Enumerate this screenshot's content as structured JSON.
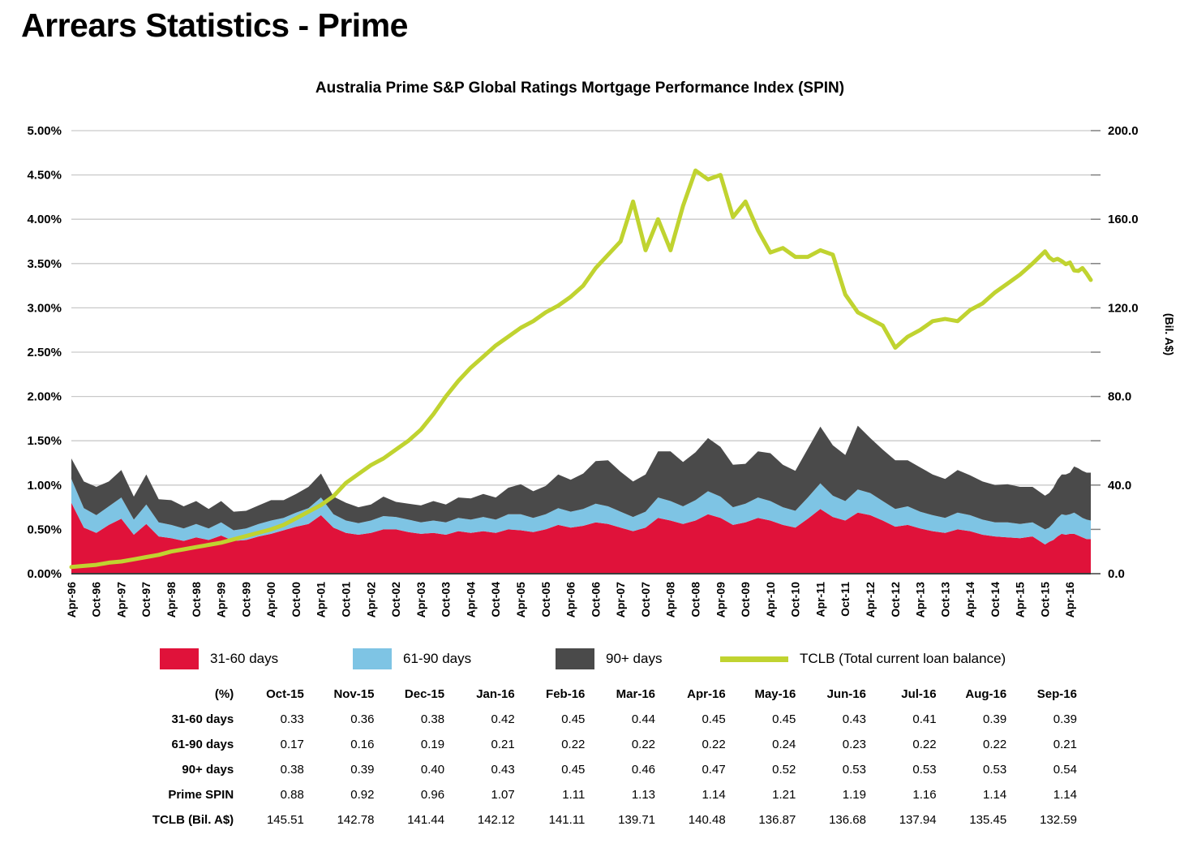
{
  "page": {
    "title": "Arrears Statistics - Prime"
  },
  "chart_data": {
    "type": "area",
    "subtype": "stacked-area-with-line-overlay",
    "title": "Australia Prime S&P Global Ratings Mortgage Performance Index (SPIN)",
    "grid": true,
    "x_tick_labels": [
      "Apr-96",
      "Oct-96",
      "Apr-97",
      "Oct-97",
      "Apr-98",
      "Oct-98",
      "Apr-99",
      "Oct-99",
      "Apr-00",
      "Oct-00",
      "Apr-01",
      "Oct-01",
      "Apr-02",
      "Oct-02",
      "Apr-03",
      "Oct-03",
      "Apr-04",
      "Oct-04",
      "Apr-05",
      "Oct-05",
      "Apr-06",
      "Oct-06",
      "Apr-07",
      "Oct-07",
      "Apr-08",
      "Oct-08",
      "Apr-09",
      "Oct-09",
      "Apr-10",
      "Oct-10",
      "Apr-11",
      "Oct-11",
      "Apr-12",
      "Oct-12",
      "Apr-13",
      "Oct-13",
      "Apr-14",
      "Oct-14",
      "Apr-15",
      "Oct-15",
      "Apr-16"
    ],
    "x_tick_month_step": 6,
    "x_total_months": 245,
    "y_left": {
      "min": 0,
      "max": 5,
      "tick_labels": [
        "0.00%",
        "0.50%",
        "1.00%",
        "1.50%",
        "2.00%",
        "2.50%",
        "3.00%",
        "3.50%",
        "4.00%",
        "4.50%",
        "5.00%"
      ],
      "format": "percent"
    },
    "y_right": {
      "label": "(Bil. A$)",
      "min": 0,
      "max": 200,
      "tick_step": 20,
      "label_step": 40,
      "tick_labels": [
        "0.0",
        "40.0",
        "80.0",
        "120.0",
        "160.0",
        "200.0"
      ]
    },
    "months_from_apr96": [
      0,
      3,
      6,
      9,
      12,
      15,
      18,
      21,
      24,
      27,
      30,
      33,
      36,
      39,
      42,
      45,
      48,
      51,
      54,
      57,
      60,
      63,
      66,
      69,
      72,
      75,
      78,
      81,
      84,
      87,
      90,
      93,
      96,
      99,
      102,
      105,
      108,
      111,
      114,
      117,
      120,
      123,
      126,
      129,
      132,
      135,
      138,
      141,
      144,
      147,
      150,
      153,
      156,
      159,
      162,
      165,
      168,
      171,
      174,
      177,
      180,
      183,
      186,
      189,
      192,
      195,
      198,
      201,
      204,
      207,
      210,
      213,
      216,
      219,
      222,
      225,
      228,
      231,
      234,
      235,
      236,
      237,
      238,
      239,
      240,
      241,
      242,
      243,
      244,
      245
    ],
    "series": [
      {
        "name": "31-60 days",
        "type": "area-stacked",
        "axis": "left",
        "color": "#e0123a",
        "values": [
          0.8,
          0.52,
          0.46,
          0.55,
          0.62,
          0.44,
          0.56,
          0.42,
          0.4,
          0.37,
          0.41,
          0.38,
          0.43,
          0.37,
          0.38,
          0.42,
          0.45,
          0.49,
          0.53,
          0.56,
          0.66,
          0.52,
          0.46,
          0.44,
          0.46,
          0.5,
          0.5,
          0.47,
          0.45,
          0.46,
          0.44,
          0.48,
          0.46,
          0.48,
          0.46,
          0.5,
          0.49,
          0.47,
          0.5,
          0.55,
          0.52,
          0.54,
          0.58,
          0.56,
          0.52,
          0.48,
          0.52,
          0.63,
          0.6,
          0.56,
          0.6,
          0.67,
          0.63,
          0.55,
          0.58,
          0.63,
          0.6,
          0.55,
          0.52,
          0.62,
          0.73,
          0.64,
          0.6,
          0.69,
          0.66,
          0.6,
          0.53,
          0.55,
          0.51,
          0.48,
          0.46,
          0.5,
          0.48,
          0.44,
          0.42,
          0.41,
          0.4,
          0.42,
          0.33,
          0.36,
          0.38,
          0.42,
          0.45,
          0.44,
          0.45,
          0.45,
          0.43,
          0.41,
          0.39,
          0.39
        ]
      },
      {
        "name": "61-90 days",
        "type": "area-stacked",
        "axis": "left",
        "color": "#7ec4e4",
        "values": [
          0.27,
          0.22,
          0.2,
          0.21,
          0.24,
          0.17,
          0.22,
          0.16,
          0.15,
          0.14,
          0.15,
          0.13,
          0.15,
          0.12,
          0.13,
          0.14,
          0.15,
          0.14,
          0.16,
          0.18,
          0.2,
          0.15,
          0.14,
          0.13,
          0.14,
          0.15,
          0.14,
          0.14,
          0.13,
          0.14,
          0.14,
          0.15,
          0.15,
          0.16,
          0.15,
          0.17,
          0.18,
          0.16,
          0.17,
          0.19,
          0.18,
          0.19,
          0.21,
          0.2,
          0.18,
          0.16,
          0.18,
          0.23,
          0.22,
          0.2,
          0.23,
          0.26,
          0.24,
          0.2,
          0.21,
          0.23,
          0.22,
          0.2,
          0.19,
          0.24,
          0.29,
          0.24,
          0.22,
          0.26,
          0.25,
          0.22,
          0.2,
          0.21,
          0.19,
          0.18,
          0.17,
          0.19,
          0.18,
          0.17,
          0.16,
          0.17,
          0.16,
          0.16,
          0.17,
          0.16,
          0.19,
          0.21,
          0.22,
          0.22,
          0.22,
          0.24,
          0.23,
          0.22,
          0.22,
          0.21
        ]
      },
      {
        "name": "90+ days",
        "type": "area-stacked",
        "axis": "left",
        "color": "#4a4a4a",
        "values": [
          0.23,
          0.3,
          0.32,
          0.28,
          0.31,
          0.26,
          0.34,
          0.26,
          0.28,
          0.25,
          0.26,
          0.22,
          0.24,
          0.21,
          0.2,
          0.21,
          0.23,
          0.2,
          0.21,
          0.24,
          0.27,
          0.2,
          0.2,
          0.18,
          0.18,
          0.22,
          0.17,
          0.18,
          0.19,
          0.22,
          0.2,
          0.23,
          0.24,
          0.26,
          0.25,
          0.3,
          0.34,
          0.3,
          0.32,
          0.38,
          0.36,
          0.4,
          0.48,
          0.52,
          0.45,
          0.4,
          0.42,
          0.52,
          0.56,
          0.5,
          0.54,
          0.6,
          0.56,
          0.48,
          0.45,
          0.52,
          0.54,
          0.48,
          0.45,
          0.55,
          0.64,
          0.57,
          0.52,
          0.72,
          0.62,
          0.58,
          0.55,
          0.52,
          0.5,
          0.46,
          0.44,
          0.48,
          0.45,
          0.43,
          0.42,
          0.43,
          0.42,
          0.4,
          0.38,
          0.39,
          0.4,
          0.43,
          0.45,
          0.46,
          0.47,
          0.52,
          0.53,
          0.53,
          0.53,
          0.54
        ]
      },
      {
        "name": "TCLB (Total current loan balance)",
        "type": "line",
        "axis": "right",
        "color": "#c0d330",
        "values": [
          3,
          3.5,
          4,
          5,
          5.5,
          6.5,
          7.5,
          8.5,
          10,
          11,
          12,
          13,
          14,
          15.5,
          17,
          18.5,
          20,
          22,
          25,
          28,
          31,
          35,
          41,
          45,
          49,
          52,
          56,
          60,
          65,
          72,
          80,
          87,
          93,
          98,
          103,
          107,
          111,
          114,
          118,
          121,
          125,
          130,
          138,
          144,
          150,
          168,
          146,
          160,
          146,
          166,
          182,
          178,
          180,
          161,
          168,
          155,
          145,
          147,
          143,
          143,
          146,
          144,
          126,
          118,
          115,
          112,
          102,
          107,
          110,
          114,
          115,
          114,
          119,
          122,
          127,
          131,
          135,
          140,
          145.51,
          142.78,
          141.44,
          142.12,
          141.11,
          139.71,
          140.48,
          136.87,
          136.68,
          137.94,
          135.45,
          132.59
        ]
      }
    ]
  },
  "legend": {
    "items": [
      {
        "label": "31-60 days",
        "shape": "rect",
        "color": "#e0123a",
        "x": 197
      },
      {
        "label": "61-90 days",
        "shape": "rect",
        "color": "#7ec4e4",
        "x": 435
      },
      {
        "label": "90+ days",
        "shape": "rect",
        "color": "#4a4a4a",
        "x": 685
      },
      {
        "label": "TCLB (Total current loan balance)",
        "shape": "line",
        "color": "#c0d330",
        "x": 888
      }
    ]
  },
  "table": {
    "header": [
      "(%)",
      "Oct-15",
      "Nov-15",
      "Dec-15",
      "Jan-16",
      "Feb-16",
      "Mar-16",
      "Apr-16",
      "May-16",
      "Jun-16",
      "Jul-16",
      "Aug-16",
      "Sep-16"
    ],
    "rows": [
      {
        "label": "31-60 days",
        "values": [
          "0.33",
          "0.36",
          "0.38",
          "0.42",
          "0.45",
          "0.44",
          "0.45",
          "0.45",
          "0.43",
          "0.41",
          "0.39",
          "0.39"
        ]
      },
      {
        "label": "61-90 days",
        "values": [
          "0.17",
          "0.16",
          "0.19",
          "0.21",
          "0.22",
          "0.22",
          "0.22",
          "0.24",
          "0.23",
          "0.22",
          "0.22",
          "0.21"
        ]
      },
      {
        "label": "90+ days",
        "values": [
          "0.38",
          "0.39",
          "0.40",
          "0.43",
          "0.45",
          "0.46",
          "0.47",
          "0.52",
          "0.53",
          "0.53",
          "0.53",
          "0.54"
        ]
      },
      {
        "label": "Prime SPIN",
        "values": [
          "0.88",
          "0.92",
          "0.96",
          "1.07",
          "1.11",
          "1.13",
          "1.14",
          "1.21",
          "1.19",
          "1.16",
          "1.14",
          "1.14"
        ]
      },
      {
        "label": "TCLB (Bil. A$)",
        "values": [
          "145.51",
          "142.78",
          "141.44",
          "142.12",
          "141.11",
          "139.71",
          "140.48",
          "136.87",
          "136.68",
          "137.94",
          "135.45",
          "132.59"
        ]
      }
    ]
  },
  "colors": {
    "gridline": "#c9c9c9",
    "zero_axis": "#3c3c3c",
    "tick": "#808080"
  }
}
